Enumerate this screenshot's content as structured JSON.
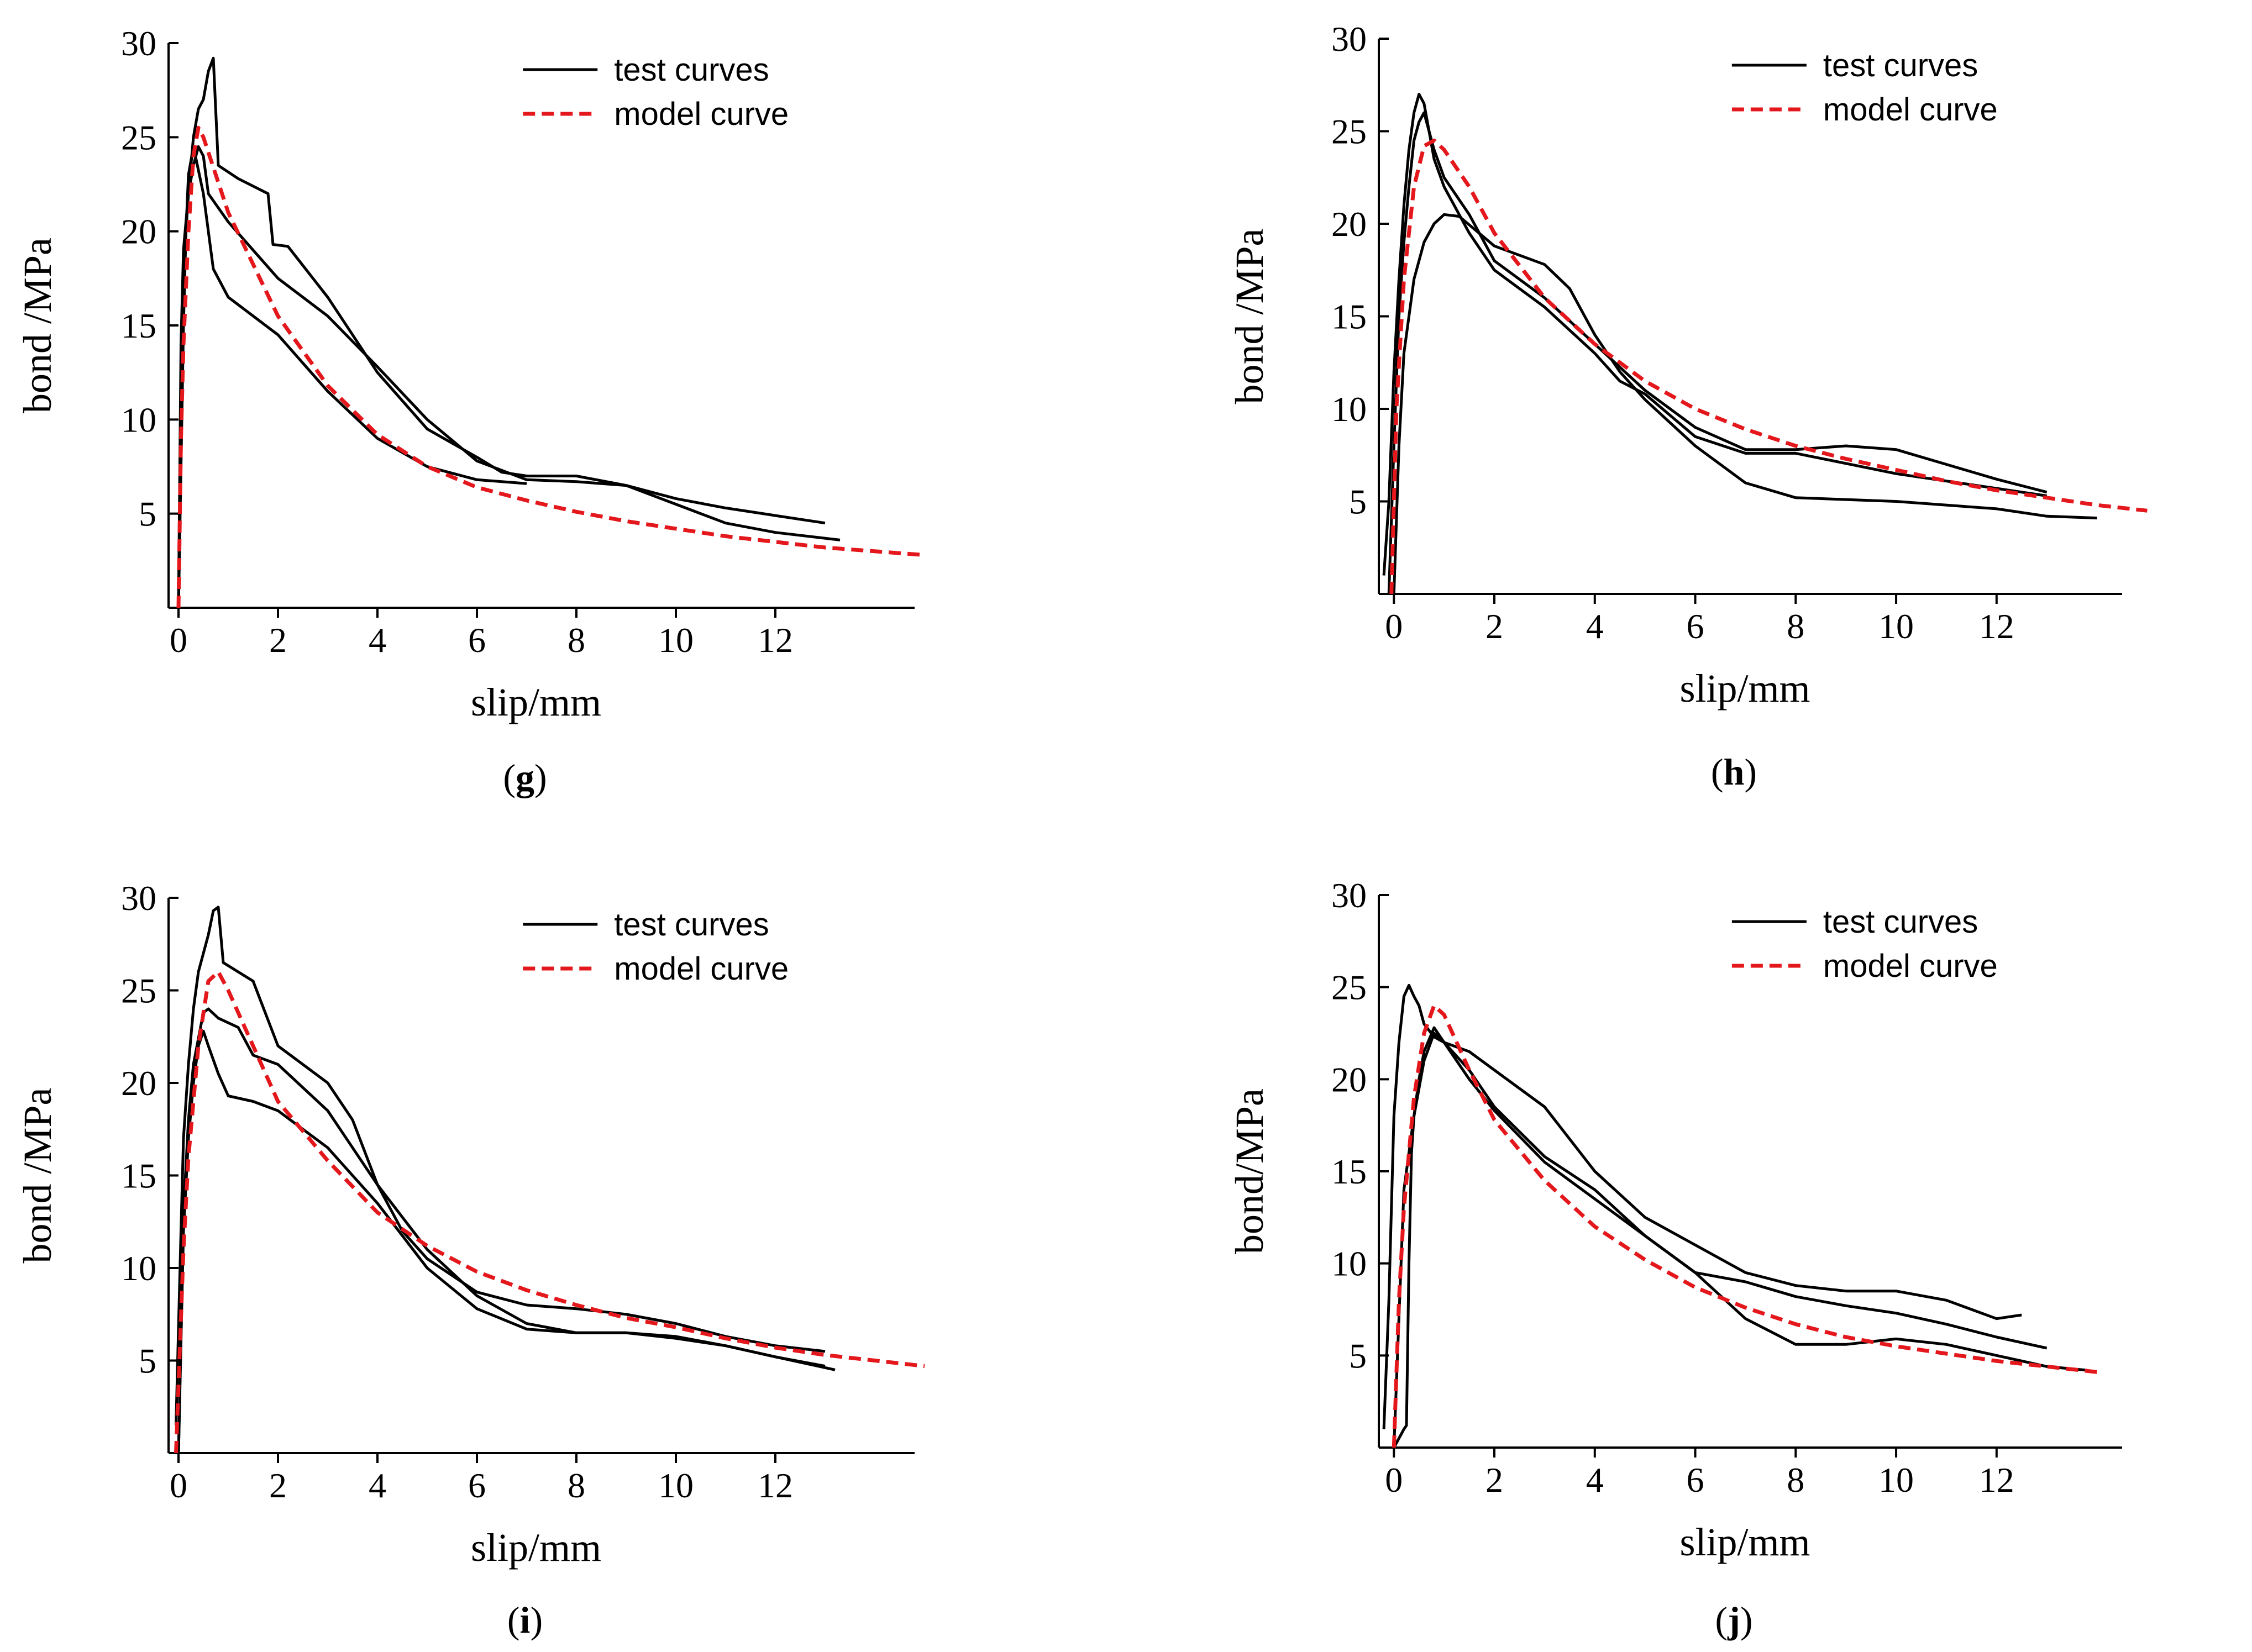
{
  "chart_data": [
    {
      "panel": "g",
      "type": "line",
      "xlabel": "slip/mm",
      "ylabel": "bond /MPa",
      "xlim": [
        -0.2,
        14.8
      ],
      "ylim": [
        0,
        30
      ],
      "xticks": [
        0,
        2,
        4,
        6,
        8,
        10,
        12
      ],
      "yticks": [
        5,
        10,
        15,
        20,
        25,
        30
      ],
      "legend": {
        "position": "top-right",
        "entries": [
          "test curves",
          "model curve"
        ]
      },
      "series": [
        {
          "name": "test curves",
          "style": "solid-black",
          "x": [
            0,
            0.05,
            0.1,
            0.2,
            0.3,
            0.4,
            0.5,
            0.6,
            0.7,
            0.8,
            1.2,
            1.8,
            1.9,
            2.2,
            3,
            4,
            5,
            6,
            6.5,
            7,
            8,
            9,
            10,
            11,
            12,
            13
          ],
          "y": [
            0,
            14,
            19,
            22,
            25,
            26.5,
            27,
            28.5,
            29.2,
            23.5,
            22.8,
            22,
            19.3,
            19.2,
            16.5,
            12.5,
            9.5,
            8,
            7.2,
            7,
            7,
            6.5,
            5.8,
            5.3,
            4.9,
            4.5
          ]
        },
        {
          "name": "test curves",
          "style": "solid-black",
          "x": [
            0,
            0.1,
            0.2,
            0.3,
            0.4,
            0.5,
            0.6,
            1,
            1.5,
            2,
            3,
            4,
            5,
            6,
            7,
            8,
            9,
            10,
            11,
            12,
            13.3
          ],
          "y": [
            0,
            18,
            22,
            23.5,
            24.5,
            24,
            22,
            20.5,
            19,
            17.5,
            15.5,
            12.8,
            10,
            7.8,
            6.8,
            6.7,
            6.5,
            5.5,
            4.5,
            4,
            3.6
          ]
        },
        {
          "name": "test curves",
          "style": "solid-black",
          "x": [
            0,
            0.1,
            0.15,
            0.2,
            0.3,
            0.5,
            0.7,
            0.8,
            1,
            2,
            3,
            4,
            5,
            6,
            7
          ],
          "y": [
            0,
            15,
            20,
            23,
            24.5,
            22,
            18,
            17.5,
            16.5,
            14.5,
            11.5,
            9,
            7.5,
            6.8,
            6.6
          ]
        },
        {
          "name": "model curve",
          "style": "dashed-red",
          "x": [
            0,
            0.05,
            0.1,
            0.2,
            0.3,
            0.4,
            0.5,
            1,
            2,
            3,
            4,
            5,
            6,
            7,
            8,
            9,
            10,
            11,
            12,
            13,
            14,
            15
          ],
          "y": [
            0,
            9,
            14,
            20,
            24,
            25.5,
            25,
            21,
            15.5,
            11.8,
            9.2,
            7.5,
            6.4,
            5.7,
            5.1,
            4.6,
            4.2,
            3.8,
            3.5,
            3.2,
            3,
            2.8
          ]
        }
      ],
      "caption_letter": "g"
    },
    {
      "panel": "h",
      "type": "line",
      "xlabel": "slip/mm",
      "ylabel": "bond /MPa",
      "xlim": [
        -0.3,
        14.5
      ],
      "ylim": [
        0,
        30
      ],
      "xticks": [
        0,
        2,
        4,
        6,
        8,
        10,
        12
      ],
      "yticks": [
        5,
        10,
        15,
        20,
        25,
        30
      ],
      "legend": {
        "position": "top-right",
        "entries": [
          "test curves",
          "model curve"
        ]
      },
      "series": [
        {
          "name": "test curves",
          "style": "solid-black",
          "x": [
            -0.2,
            -0.1,
            0,
            0.1,
            0.2,
            0.3,
            0.4,
            0.5,
            0.6,
            0.8,
            1,
            1.5,
            2,
            3,
            4,
            4.5,
            5,
            6,
            7,
            8,
            10,
            12,
            13
          ],
          "y": [
            1,
            5,
            12,
            17,
            21,
            24,
            26,
            27,
            26.5,
            23.5,
            22,
            19.5,
            17.5,
            15.5,
            13,
            11.5,
            10.8,
            8.5,
            7.6,
            7.6,
            6.5,
            5.7,
            5.3
          ]
        },
        {
          "name": "test curves",
          "style": "solid-black",
          "x": [
            -0.1,
            0,
            0.1,
            0.2,
            0.3,
            0.4,
            0.5,
            0.6,
            0.8,
            1,
            1.5,
            2,
            3,
            4,
            5,
            6,
            7,
            8,
            9,
            10,
            11,
            12,
            13
          ],
          "y": [
            0,
            8,
            15,
            19,
            22,
            24.5,
            25.5,
            26,
            24,
            22.5,
            20.5,
            18,
            16,
            13.5,
            11,
            9,
            7.8,
            7.8,
            8,
            7.8,
            7,
            6.2,
            5.5
          ]
        },
        {
          "name": "test curves",
          "style": "solid-black",
          "x": [
            0,
            0.1,
            0.2,
            0.4,
            0.6,
            0.8,
            1,
            1.3,
            2,
            3,
            3.5,
            4,
            4.5,
            5,
            6,
            7,
            8,
            10,
            12,
            13,
            14
          ],
          "y": [
            0,
            8,
            13,
            17,
            19,
            20,
            20.5,
            20.4,
            18.8,
            17.8,
            16.5,
            14,
            12,
            10.5,
            8,
            6,
            5.2,
            5,
            4.6,
            4.2,
            4.1
          ]
        },
        {
          "name": "model curve",
          "style": "dashed-red",
          "x": [
            -0.05,
            0.05,
            0.2,
            0.4,
            0.6,
            0.8,
            1,
            1.5,
            2,
            3,
            4,
            5,
            6,
            7,
            8,
            9,
            10,
            11,
            12,
            13,
            14,
            15
          ],
          "y": [
            0,
            10,
            17,
            22,
            24.2,
            24.5,
            24,
            22,
            19.5,
            16,
            13.5,
            11.5,
            10,
            8.9,
            8,
            7.3,
            6.7,
            6.1,
            5.6,
            5.2,
            4.8,
            4.5
          ]
        }
      ],
      "caption_letter": "h"
    },
    {
      "panel": "i",
      "type": "line",
      "xlabel": "slip/mm",
      "ylabel": "bond /MPa",
      "xlim": [
        -0.2,
        14.8
      ],
      "ylim": [
        0,
        30
      ],
      "xticks": [
        0,
        2,
        4,
        6,
        8,
        10,
        12
      ],
      "yticks": [
        5,
        10,
        15,
        20,
        25,
        30
      ],
      "legend": {
        "position": "top-right",
        "entries": [
          "test curves",
          "model curve"
        ]
      },
      "series": [
        {
          "name": "test curves",
          "style": "solid-black",
          "x": [
            -0.05,
            0.05,
            0.1,
            0.2,
            0.3,
            0.4,
            0.5,
            0.6,
            0.7,
            0.8,
            0.9,
            1.5,
            2,
            3,
            3.5,
            4,
            4.5,
            5,
            6,
            7,
            8,
            9,
            10,
            11,
            12,
            13
          ],
          "y": [
            1.5,
            12,
            17,
            21,
            24,
            26,
            27,
            28,
            29.3,
            29.5,
            26.5,
            25.5,
            22,
            20,
            18,
            14.5,
            12,
            10.5,
            8.7,
            8,
            7.8,
            7.5,
            7,
            6.3,
            5.8,
            5.5
          ]
        },
        {
          "name": "test curves",
          "style": "solid-black",
          "x": [
            0,
            0.1,
            0.2,
            0.3,
            0.5,
            0.6,
            0.8,
            1.2,
            1.5,
            2,
            3,
            4,
            5,
            6,
            7,
            8,
            9,
            10,
            11,
            12,
            13.2
          ],
          "y": [
            0,
            13,
            18,
            21,
            23.8,
            24,
            23.5,
            23,
            21.5,
            21,
            18.5,
            14.5,
            11,
            8.5,
            7,
            6.5,
            6.5,
            6.2,
            5.8,
            5.2,
            4.5
          ]
        },
        {
          "name": "test curves",
          "style": "solid-black",
          "x": [
            0,
            0.1,
            0.2,
            0.3,
            0.4,
            0.5,
            0.6,
            0.8,
            1,
            1.5,
            2,
            3,
            4,
            5,
            6,
            7,
            8,
            9,
            10,
            11,
            12,
            13
          ],
          "y": [
            0,
            12,
            17,
            20,
            22,
            22.8,
            22,
            20.5,
            19.3,
            19,
            18.5,
            16.5,
            13.5,
            10,
            7.8,
            6.7,
            6.5,
            6.5,
            6.3,
            5.8,
            5.2,
            4.7
          ]
        },
        {
          "name": "model curve",
          "style": "dashed-red",
          "x": [
            -0.05,
            0.1,
            0.2,
            0.4,
            0.6,
            0.8,
            1,
            1.5,
            2,
            3,
            4,
            5,
            6,
            7,
            8,
            9,
            10,
            11,
            12,
            13,
            14,
            15
          ],
          "y": [
            0,
            11,
            16,
            22,
            25.5,
            26,
            25,
            22,
            19,
            15.8,
            13,
            11.2,
            9.8,
            8.8,
            8,
            7.3,
            6.8,
            6.2,
            5.7,
            5.3,
            5,
            4.7
          ]
        }
      ],
      "caption_letter": "i"
    },
    {
      "panel": "j",
      "type": "line",
      "xlabel": "slip/mm",
      "ylabel": "bond/MPa",
      "xlim": [
        -0.3,
        14.5
      ],
      "ylim": [
        0,
        30
      ],
      "xticks": [
        0,
        2,
        4,
        6,
        8,
        10,
        12
      ],
      "yticks": [
        5,
        10,
        15,
        20,
        25,
        30
      ],
      "legend": {
        "position": "top-right",
        "entries": [
          "test curves",
          "model curve"
        ]
      },
      "series": [
        {
          "name": "test curves",
          "style": "solid-black",
          "x": [
            -0.2,
            -0.1,
            0,
            0.1,
            0.2,
            0.3,
            0.4,
            0.5,
            0.6,
            0.8,
            1,
            1.5,
            2,
            3,
            4,
            5,
            6,
            7,
            8,
            9,
            10,
            11,
            12,
            12.5
          ],
          "y": [
            1,
            8,
            18,
            22,
            24.5,
            25.1,
            24.5,
            24,
            23,
            22.3,
            22,
            21.5,
            20.5,
            18.5,
            15,
            12.5,
            11,
            9.5,
            8.8,
            8.5,
            8.5,
            8,
            7,
            7.2
          ]
        },
        {
          "name": "test curves",
          "style": "solid-black",
          "x": [
            0,
            0.1,
            0.2,
            0.25,
            0.3,
            0.35,
            0.4,
            0.5,
            0.6,
            0.8,
            1,
            1.5,
            2,
            3,
            4,
            5,
            6,
            7,
            8,
            9,
            10,
            11,
            12,
            13
          ],
          "y": [
            0,
            0.5,
            1,
            1.2,
            10,
            16,
            18,
            20,
            21.5,
            22.8,
            22,
            20,
            18.3,
            15.5,
            13.5,
            11.5,
            9.5,
            9,
            8.2,
            7.7,
            7.3,
            6.7,
            6,
            5.4
          ]
        },
        {
          "name": "test curves",
          "style": "solid-black",
          "x": [
            0,
            0.2,
            0.4,
            0.6,
            0.8,
            1,
            1.5,
            2,
            3,
            4,
            5,
            6,
            7,
            8,
            9,
            10,
            11,
            12,
            13,
            13.8
          ],
          "y": [
            0,
            14,
            18,
            21,
            22.5,
            22,
            20.5,
            18.5,
            15.8,
            14,
            11.5,
            9.5,
            7,
            5.6,
            5.6,
            5.9,
            5.6,
            5,
            4.4,
            4.2
          ]
        },
        {
          "name": "model curve",
          "style": "dashed-red",
          "x": [
            0,
            0.1,
            0.2,
            0.4,
            0.6,
            0.8,
            1,
            1.5,
            2,
            3,
            4,
            5,
            6,
            7,
            8,
            9,
            10,
            11,
            12,
            13,
            14
          ],
          "y": [
            0,
            8,
            13,
            19,
            22.5,
            24,
            23.5,
            20.5,
            17.8,
            14.5,
            12,
            10.2,
            8.7,
            7.6,
            6.7,
            6,
            5.5,
            5.1,
            4.7,
            4.4,
            4.1
          ]
        }
      ],
      "caption_letter": "j"
    }
  ],
  "colors": {
    "test": "#000000",
    "model": "#e4181c",
    "axis": "#000000"
  }
}
